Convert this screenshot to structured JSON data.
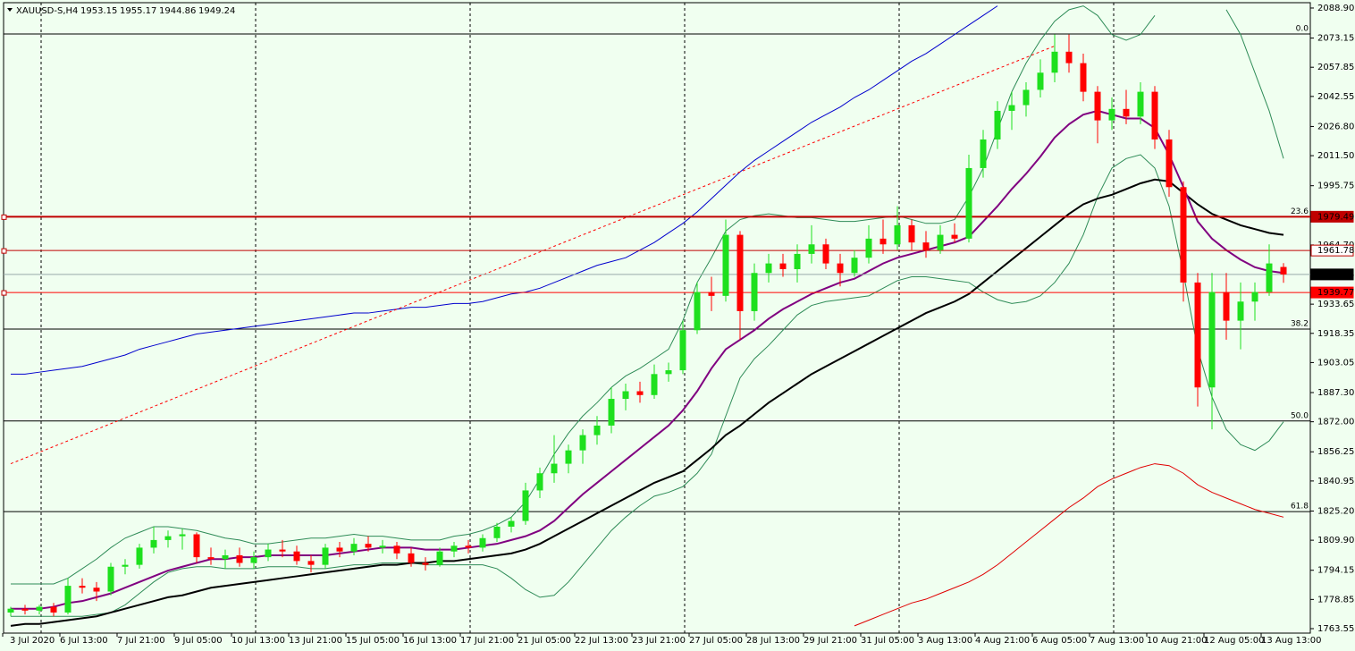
{
  "header": {
    "symbol": "XAUUSD-S,H4"
  },
  "chart_data": {
    "type": "candlestick",
    "up_color": "#1ee01e",
    "down_color": "#ff0000",
    "background": "#f0fff0",
    "candles": [
      [
        1772,
        1775,
        1770,
        1774
      ],
      [
        1774,
        1776,
        1771,
        1773
      ],
      [
        1773,
        1776,
        1771,
        1775
      ],
      [
        1775,
        1777,
        1770,
        1772
      ],
      [
        1772,
        1790,
        1771,
        1786
      ],
      [
        1786,
        1790,
        1782,
        1785
      ],
      [
        1785,
        1788,
        1778,
        1783
      ],
      [
        1783,
        1798,
        1781,
        1796
      ],
      [
        1796,
        1800,
        1792,
        1797
      ],
      [
        1797,
        1808,
        1795,
        1806
      ],
      [
        1806,
        1817,
        1803,
        1810
      ],
      [
        1810,
        1815,
        1806,
        1812
      ],
      [
        1812,
        1816,
        1805,
        1813
      ],
      [
        1813,
        1814,
        1798,
        1801
      ],
      [
        1801,
        1806,
        1797,
        1800
      ],
      [
        1800,
        1805,
        1795,
        1802
      ],
      [
        1802,
        1806,
        1796,
        1798
      ],
      [
        1798,
        1804,
        1795,
        1801
      ],
      [
        1801,
        1808,
        1799,
        1805
      ],
      [
        1805,
        1810,
        1801,
        1804
      ],
      [
        1804,
        1807,
        1797,
        1799
      ],
      [
        1799,
        1802,
        1793,
        1797
      ],
      [
        1797,
        1808,
        1795,
        1806
      ],
      [
        1806,
        1809,
        1801,
        1804
      ],
      [
        1804,
        1811,
        1802,
        1808
      ],
      [
        1808,
        1812,
        1804,
        1806
      ],
      [
        1806,
        1810,
        1803,
        1807
      ],
      [
        1807,
        1809,
        1800,
        1803
      ],
      [
        1803,
        1806,
        1796,
        1798
      ],
      [
        1798,
        1801,
        1794,
        1797
      ],
      [
        1797,
        1806,
        1796,
        1804
      ],
      [
        1804,
        1809,
        1801,
        1807
      ],
      [
        1807,
        1810,
        1803,
        1806
      ],
      [
        1806,
        1813,
        1804,
        1811
      ],
      [
        1811,
        1819,
        1809,
        1817
      ],
      [
        1817,
        1822,
        1814,
        1820
      ],
      [
        1820,
        1840,
        1818,
        1836
      ],
      [
        1836,
        1848,
        1832,
        1845
      ],
      [
        1845,
        1865,
        1840,
        1850
      ],
      [
        1850,
        1860,
        1845,
        1857
      ],
      [
        1857,
        1868,
        1850,
        1865
      ],
      [
        1865,
        1875,
        1860,
        1870
      ],
      [
        1870,
        1890,
        1866,
        1884
      ],
      [
        1884,
        1892,
        1878,
        1888
      ],
      [
        1888,
        1893,
        1882,
        1886
      ],
      [
        1886,
        1902,
        1884,
        1897
      ],
      [
        1897,
        1903,
        1893,
        1899
      ],
      [
        1899,
        1925,
        1897,
        1920
      ],
      [
        1920,
        1945,
        1918,
        1940
      ],
      [
        1940,
        1948,
        1930,
        1938
      ],
      [
        1938,
        1978,
        1935,
        1970
      ],
      [
        1970,
        1972,
        1915,
        1930
      ],
      [
        1930,
        1955,
        1925,
        1950
      ],
      [
        1950,
        1960,
        1945,
        1955
      ],
      [
        1955,
        1960,
        1948,
        1952
      ],
      [
        1952,
        1965,
        1945,
        1960
      ],
      [
        1960,
        1975,
        1955,
        1965
      ],
      [
        1965,
        1968,
        1952,
        1955
      ],
      [
        1955,
        1960,
        1943,
        1950
      ],
      [
        1950,
        1962,
        1948,
        1958
      ],
      [
        1958,
        1975,
        1955,
        1968
      ],
      [
        1968,
        1978,
        1960,
        1965
      ],
      [
        1965,
        1985,
        1962,
        1975
      ],
      [
        1975,
        1978,
        1962,
        1966
      ],
      [
        1966,
        1972,
        1958,
        1962
      ],
      [
        1962,
        1975,
        1960,
        1970
      ],
      [
        1970,
        1976,
        1966,
        1968
      ],
      [
        1968,
        2012,
        1966,
        2005
      ],
      [
        2005,
        2025,
        2000,
        2020
      ],
      [
        2020,
        2040,
        2015,
        2035
      ],
      [
        2035,
        2045,
        2025,
        2038
      ],
      [
        2038,
        2050,
        2032,
        2046
      ],
      [
        2046,
        2062,
        2042,
        2055
      ],
      [
        2055,
        2075,
        2050,
        2066
      ],
      [
        2066,
        2075,
        2055,
        2060
      ],
      [
        2060,
        2065,
        2040,
        2045
      ],
      [
        2045,
        2048,
        2018,
        2030
      ],
      [
        2030,
        2042,
        2025,
        2036
      ],
      [
        2036,
        2046,
        2028,
        2032
      ],
      [
        2032,
        2050,
        2028,
        2045
      ],
      [
        2045,
        2048,
        2015,
        2020
      ],
      [
        2020,
        2025,
        1990,
        1995
      ],
      [
        1995,
        1998,
        1935,
        1945
      ],
      [
        1945,
        1950,
        1880,
        1890
      ],
      [
        1890,
        1950,
        1868,
        1940
      ],
      [
        1940,
        1950,
        1915,
        1925
      ],
      [
        1925,
        1945,
        1910,
        1935
      ],
      [
        1935,
        1945,
        1925,
        1940
      ],
      [
        1940,
        1965,
        1938,
        1955
      ],
      [
        1953.15,
        1955.17,
        1944.86,
        1949.24
      ]
    ],
    "x_labels": [
      "3 Jul 2020",
      "6 Jul 13:00",
      "7 Jul 21:00",
      "9 Jul 05:00",
      "10 Jul 13:00",
      "13 Jul 21:00",
      "15 Jul 05:00",
      "16 Jul 13:00",
      "17 Jul 21:00",
      "21 Jul 05:00",
      "22 Jul 13:00",
      "23 Jul 21:00",
      "27 Jul 05:00",
      "28 Jul 13:00",
      "29 Jul 21:00",
      "31 Jul 05:00",
      "3 Aug 13:00",
      "4 Aug 21:00",
      "6 Aug 05:00",
      "7 Aug 13:00",
      "10 Aug 21:00",
      "12 Aug 05:00",
      "13 Aug 13:00"
    ],
    "ylim": [
      1761.2,
      2091.7
    ],
    "yticks": [
      {
        "value": 2088.9,
        "label": "2088.90"
      },
      2073.15,
      2057.85,
      2042.55,
      {
        "value": 2026.8,
        "label": "2026.80"
      },
      {
        "value": 2011.5,
        "label": "2011.50"
      },
      1995.75,
      {
        "value": 1964.7,
        "label": "1964.70"
      },
      1933.65,
      1918.35,
      1903.05,
      {
        "value": 1887.3,
        "label": "1887.30"
      },
      {
        "value": 1872,
        "label": "1872.00"
      },
      1856.25,
      1840.95,
      {
        "value": 1825.2,
        "label": "1825.20"
      },
      {
        "value": 1809.9,
        "label": "1809.90"
      },
      1794.15,
      1778.85,
      1763.55
    ],
    "fib_levels": [
      {
        "label": "0.0",
        "value": 2075.3
      },
      {
        "label": "23.6",
        "value": 1979.49
      },
      {
        "label": "38.2",
        "value": 1920.6
      },
      {
        "label": "50.0",
        "value": 1872.4
      },
      {
        "label": "61.8",
        "value": 1824.9
      }
    ],
    "price_tags": [
      {
        "value": 1979.49,
        "color": "#c00000",
        "text_color": "#ffffff",
        "width": 2
      },
      {
        "value": 1961.78,
        "color": "#ffffff",
        "text_color": "#c00000",
        "width": 1
      },
      {
        "value": 1939.77,
        "color": "#ff0000",
        "text_color": "#ffffff",
        "width": 1
      }
    ],
    "lines": [
      {
        "color": "#2e8b57",
        "width": 1,
        "values": [
          1787,
          1787,
          1787,
          1787,
          1790,
          1795,
          1800,
          1806,
          1811,
          1814,
          1817,
          1817,
          1816,
          1815,
          1813,
          1811,
          1810,
          1808,
          1808,
          1809,
          1810,
          1811,
          1811,
          1812,
          1813,
          1812,
          1812,
          1811,
          1810,
          1810,
          1810,
          1812,
          1813,
          1815,
          1818,
          1822,
          1830,
          1842,
          1855,
          1866,
          1875,
          1882,
          1890,
          1896,
          1900,
          1905,
          1910,
          1925,
          1945,
          1958,
          1972,
          1978,
          1980,
          1981,
          1980,
          1979,
          1979,
          1978,
          1977,
          1977,
          1978,
          1979,
          1980,
          1978,
          1976,
          1976,
          1978,
          1990,
          2005,
          2025,
          2045,
          2060,
          2072,
          2082,
          2088,
          2090,
          2085,
          2075,
          2072,
          2075,
          2085,
          null,
          null,
          null,
          null,
          2088,
          2075,
          2055,
          2035,
          2010
        ]
      },
      {
        "color": "#2e8b57",
        "width": 1,
        "values": [
          1770,
          1770,
          1770,
          1770,
          1770,
          1770,
          1771,
          1772,
          1776,
          1782,
          1788,
          1793,
          1795,
          1796,
          1796,
          1795,
          1795,
          1795,
          1796,
          1796,
          1796,
          1795,
          1795,
          1796,
          1797,
          1797,
          1798,
          1798,
          1798,
          1797,
          1797,
          1797,
          1797,
          1797,
          1795,
          1790,
          1784,
          1780,
          1781,
          1788,
          1797,
          1806,
          1815,
          1822,
          1828,
          1833,
          1835,
          1838,
          1845,
          1855,
          1875,
          1895,
          1905,
          1912,
          1920,
          1928,
          1933,
          1935,
          1936,
          1937,
          1938,
          1942,
          1946,
          1948,
          1948,
          1947,
          1946,
          1945,
          1940,
          1936,
          1934,
          1935,
          1938,
          1945,
          1955,
          1970,
          1990,
          2005,
          2010,
          2012,
          2005,
          1985,
          1950,
          1910,
          1885,
          1868,
          1860,
          1857,
          1862,
          1872
        ]
      },
      {
        "color": "#0000cd",
        "width": 1,
        "values": [
          1897,
          1897,
          1898,
          1899,
          1900,
          1901,
          1903,
          1905,
          1907,
          1910,
          1912,
          1914,
          1916,
          1918,
          1919,
          1920,
          1921,
          1922,
          1923,
          1924,
          1925,
          1926,
          1927,
          1928,
          1929,
          1929,
          1930,
          1931,
          1932,
          1932,
          1933,
          1934,
          1934,
          1935,
          1937,
          1939,
          1940,
          1942,
          1945,
          1948,
          1951,
          1954,
          1956,
          1958,
          1962,
          1966,
          1971,
          1976,
          1982,
          1989,
          1996,
          2003,
          2009,
          2014,
          2019,
          2024,
          2029,
          2033,
          2037,
          2042,
          2046,
          2051,
          2056,
          2061,
          2065,
          2070,
          2075,
          2080,
          2085,
          2090
        ]
      },
      {
        "color": "#e00000",
        "width": 1,
        "values": [
          null,
          null,
          null,
          null,
          null,
          null,
          null,
          null,
          null,
          null,
          null,
          null,
          null,
          null,
          null,
          null,
          null,
          null,
          null,
          null,
          null,
          null,
          null,
          null,
          null,
          null,
          null,
          null,
          null,
          null,
          null,
          null,
          null,
          null,
          null,
          null,
          null,
          null,
          null,
          null,
          null,
          null,
          null,
          null,
          null,
          null,
          null,
          null,
          null,
          null,
          null,
          null,
          null,
          null,
          null,
          null,
          null,
          null,
          null,
          1765,
          1768,
          1771,
          1774,
          1777,
          1779,
          1782,
          1785,
          1788,
          1792,
          1797,
          1803,
          1809,
          1815,
          1821,
          1827,
          1832,
          1838,
          1842,
          1845,
          1848,
          1850,
          1849,
          1845,
          1839,
          1835,
          1832,
          1829,
          1826,
          1824,
          1822
        ]
      },
      {
        "color": "#000000",
        "width": 2,
        "values": [
          1765,
          1766,
          1766,
          1767,
          1768,
          1769,
          1770,
          1772,
          1774,
          1776,
          1778,
          1780,
          1781,
          1783,
          1785,
          1786,
          1787,
          1788,
          1789,
          1790,
          1791,
          1792,
          1793,
          1794,
          1795,
          1796,
          1797,
          1797,
          1798,
          1798,
          1799,
          1799,
          1800,
          1801,
          1802,
          1803,
          1805,
          1808,
          1812,
          1816,
          1820,
          1824,
          1828,
          1832,
          1836,
          1840,
          1843,
          1846,
          1852,
          1858,
          1865,
          1870,
          1876,
          1882,
          1887,
          1892,
          1897,
          1901,
          1905,
          1909,
          1913,
          1917,
          1921,
          1925,
          1929,
          1932,
          1935,
          1939,
          1945,
          1951,
          1957,
          1963,
          1969,
          1975,
          1981,
          1986,
          1989,
          1991,
          1994,
          1997,
          1999,
          1998,
          1992,
          1986,
          1981,
          1978,
          1975,
          1973,
          1971,
          1970
        ]
      },
      {
        "color": "#800080",
        "width": 2,
        "values": [
          1774,
          1774,
          1774,
          1775,
          1777,
          1778,
          1780,
          1782,
          1785,
          1788,
          1791,
          1794,
          1796,
          1798,
          1800,
          1800,
          1801,
          1801,
          1802,
          1802,
          1802,
          1802,
          1802,
          1803,
          1804,
          1805,
          1806,
          1806,
          1806,
          1805,
          1805,
          1805,
          1806,
          1807,
          1808,
          1810,
          1812,
          1815,
          1820,
          1827,
          1834,
          1840,
          1846,
          1852,
          1858,
          1864,
          1870,
          1878,
          1888,
          1900,
          1910,
          1915,
          1920,
          1926,
          1931,
          1935,
          1939,
          1942,
          1945,
          1947,
          1951,
          1955,
          1958,
          1960,
          1962,
          1964,
          1966,
          1969,
          1977,
          1985,
          1994,
          2002,
          2011,
          2021,
          2028,
          2033,
          2035,
          2033,
          2031,
          2031,
          2026,
          2012,
          1995,
          1977,
          1968,
          1962,
          1957,
          1953,
          1951,
          1950
        ]
      },
      {
        "color": "#ff0000",
        "width": 1,
        "dash": true,
        "values": [
          1850,
          1853,
          1856,
          1859,
          1862,
          1865,
          1868,
          1871,
          1874,
          1877,
          1880,
          1883,
          1886,
          1889,
          1892,
          1895,
          1898,
          1901,
          1904,
          1907,
          1910,
          1913,
          1916,
          1919,
          1922,
          1925,
          1928,
          1931,
          1934,
          1937,
          1940,
          1943,
          1946,
          1949,
          1952,
          1955,
          1958,
          1961,
          1964,
          1967,
          1970,
          1973,
          1976,
          1979,
          1982,
          1985,
          1988,
          1991,
          1994,
          1997,
          2000,
          2003,
          2006,
          2009,
          2012,
          2015,
          2018,
          2021,
          2024,
          2027,
          2030,
          2033,
          2036,
          2039,
          2042,
          2045,
          2048,
          2051,
          2054,
          2057,
          2060,
          2063,
          2066,
          2069
        ]
      }
    ]
  }
}
